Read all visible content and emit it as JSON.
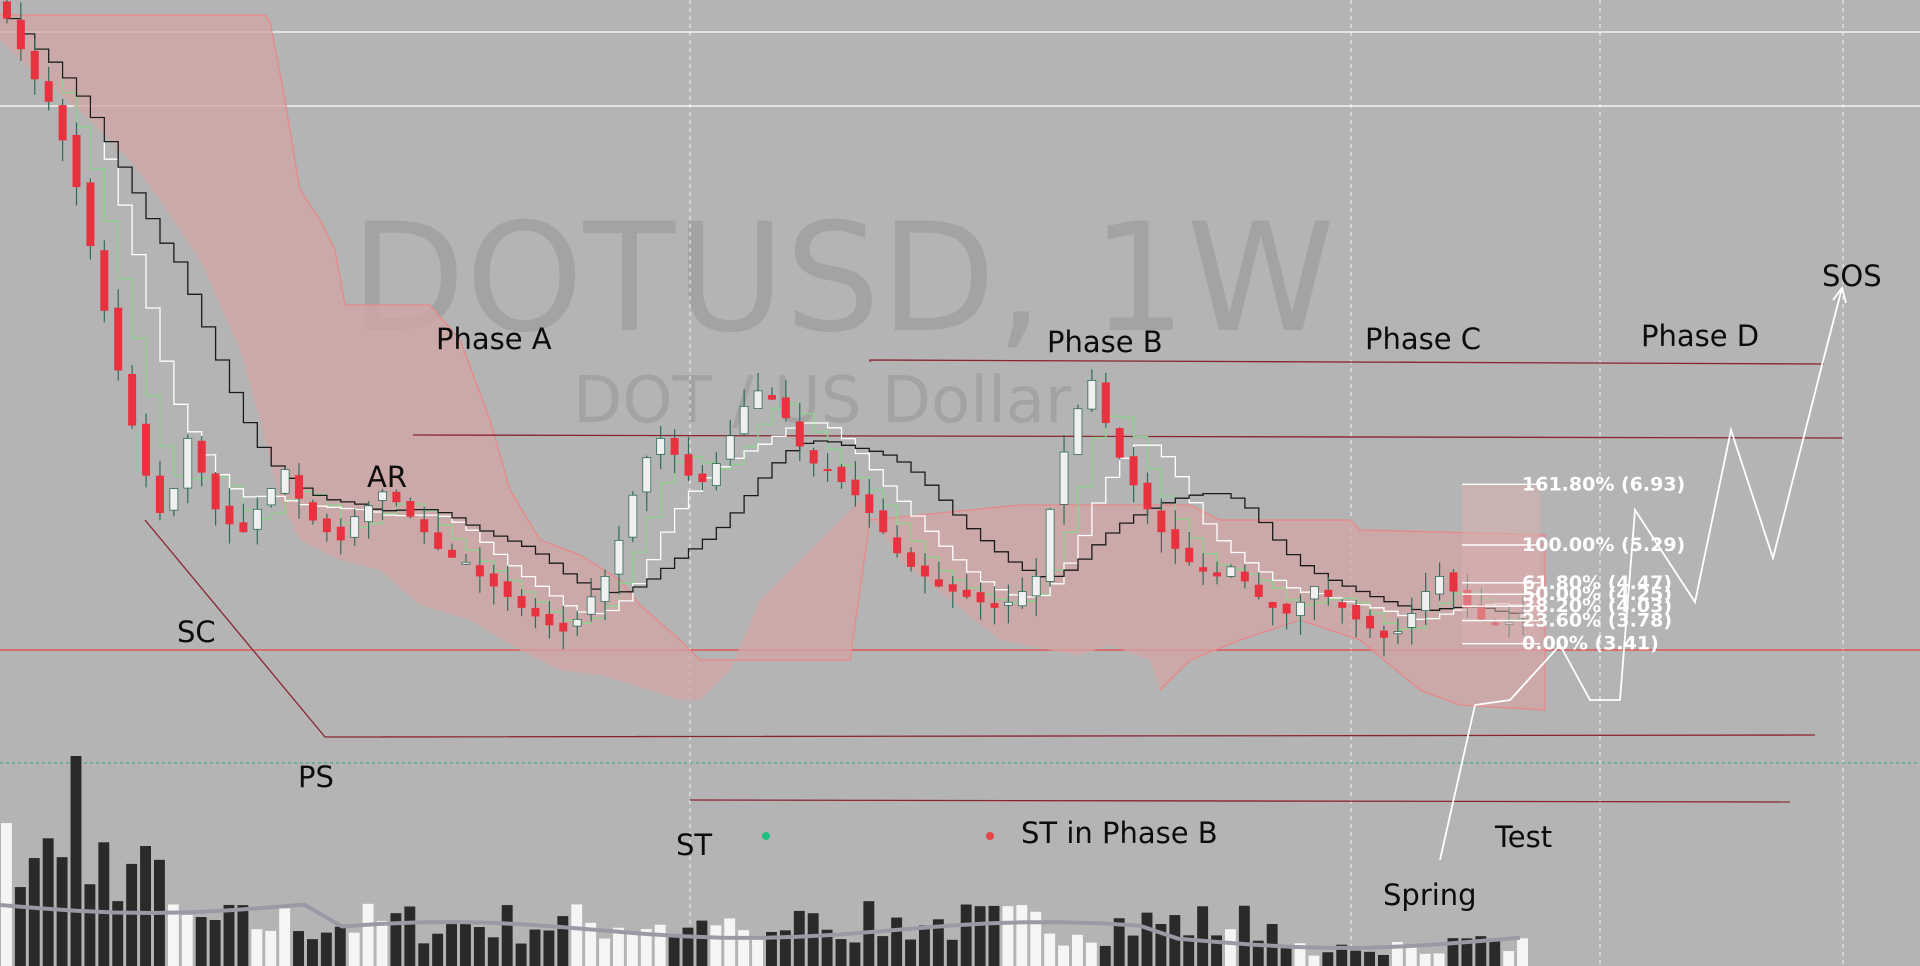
{
  "watermark": {
    "symbol": "DOTUSD, 1W",
    "description": "DOT / US Dollar"
  },
  "colors": {
    "background": "#b4b4b4",
    "bear_candle": "#e8323f",
    "bull_candle": "#f0f0f0",
    "candle_wick": "#2f6b5a",
    "cloud_fill": "#d4a5a5",
    "cloud_edge": "#e88888",
    "level_line": "#8a2430",
    "red_hline": "#e84545",
    "green_line": "#8fd18f",
    "black_line": "#1a1a1a",
    "white_line": "#ffffff",
    "volume_dark": "#2a2a2a",
    "volume_light": "#f5f5f5",
    "volume_ma": "#9a9aa6",
    "legend_green_dot": "#20c080",
    "legend_red_dot": "#e84545"
  },
  "labels": {
    "phase_a": "Phase A",
    "phase_b": "Phase B",
    "phase_c": "Phase C",
    "phase_d": "Phase D",
    "sos": "SOS",
    "ar": "AR",
    "sc": "SC",
    "ps": "PS",
    "st": "ST",
    "st_in_phase_b": "ST in Phase B",
    "spring": "Spring",
    "test": "Test"
  },
  "chart_data": {
    "type": "candlestick",
    "timeframe": "1W",
    "symbol": "DOTUSD",
    "ylim": [
      2.3,
      55
    ],
    "fib_levels": [
      {
        "ratio": "161.80%",
        "price": 6.93,
        "label": "161.80% (6.93)"
      },
      {
        "ratio": "100.00%",
        "price": 5.29,
        "label": "100.00% (5.29)"
      },
      {
        "ratio": "61.80%",
        "price": 4.47,
        "label": "61.80% (4.47)"
      },
      {
        "ratio": "50.00%",
        "price": 4.25,
        "label": "50.00% (4.25)"
      },
      {
        "ratio": "38.20%",
        "price": 4.03,
        "label": "38.20% (4.03)"
      },
      {
        "ratio": "23.60%",
        "price": 3.78,
        "label": "23.60% (3.78)"
      },
      {
        "ratio": "0.00%",
        "price": 3.41,
        "label": "0.00% (3.41)"
      }
    ],
    "close_path": [
      55,
      48,
      42,
      38,
      32,
      26,
      20,
      15,
      11.5,
      9,
      7.2,
      6.1,
      6.8,
      8.5,
      7.3,
      6.2,
      5.8,
      5.6,
      6.2,
      6.8,
      7.4,
      6.5,
      5.9,
      5.6,
      5.4,
      6.0,
      6.3,
      6.7,
      6.4,
      6.0,
      5.6,
      5.2,
      5.0,
      4.9,
      4.6,
      4.4,
      4.2,
      4.0,
      3.85,
      3.7,
      3.6,
      3.8,
      4.2,
      4.6,
      5.4,
      6.6,
      7.8,
      8.5,
      7.9,
      7.2,
      7.0,
      7.6,
      8.6,
      9.8,
      10.5,
      10.1,
      9.3,
      8.2,
      7.6,
      7.4,
      7.0,
      6.6,
      6.1,
      5.6,
      5.1,
      4.8,
      4.6,
      4.4,
      4.3,
      4.2,
      4.1,
      4.0,
      4.1,
      4.3,
      4.6,
      6.2,
      8.0,
      9.7,
      11.0,
      9.1,
      7.8,
      6.9,
      6.2,
      5.6,
      5.2,
      4.9,
      4.7,
      4.6,
      4.8,
      4.5,
      4.2,
      4.0,
      3.9,
      4.1,
      4.4,
      4.2,
      4.0,
      3.8,
      3.65,
      3.5,
      3.6,
      3.9,
      4.3,
      4.6,
      4.3,
      4.0,
      3.8,
      3.7,
      3.75,
      3.9
    ]
  }
}
